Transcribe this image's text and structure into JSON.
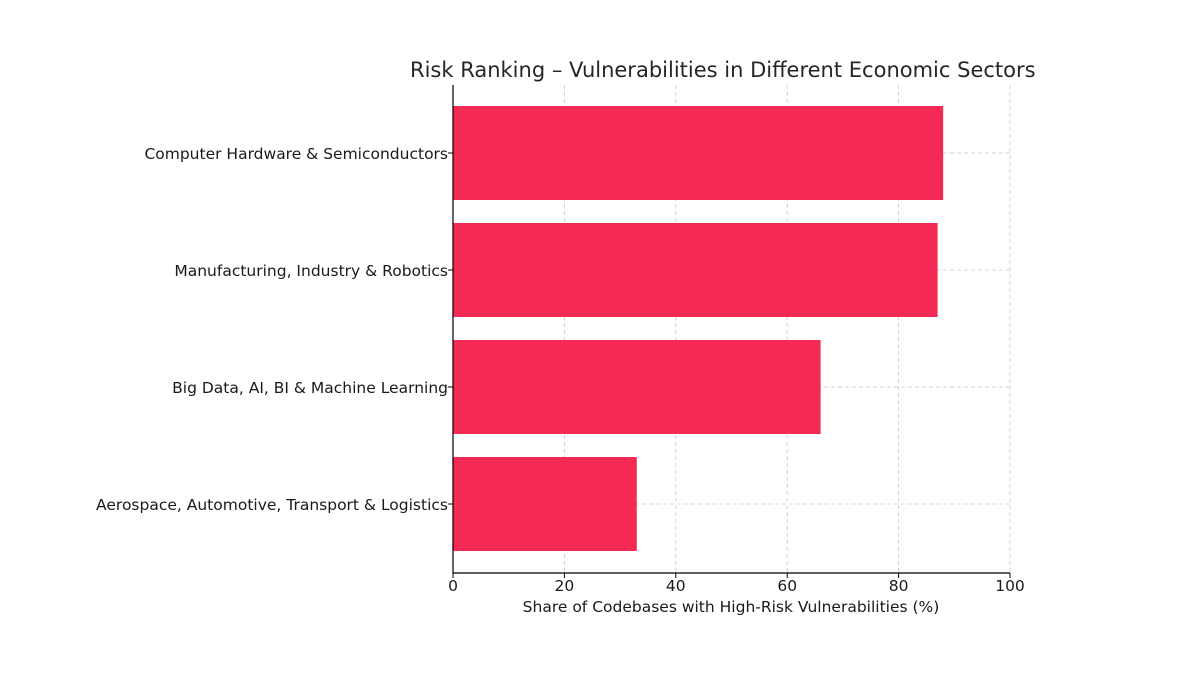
{
  "chart_data": {
    "type": "bar",
    "orientation": "horizontal",
    "title": "Risk Ranking – Vulnerabilities in Different Economic Sectors",
    "xlabel": "Share of Codebases with High-Risk Vulnerabilities (%)",
    "ylabel": "",
    "categories": [
      "Computer Hardware & Semiconductors",
      "Manufacturing, Industry & Robotics",
      "Big Data, AI, BI & Machine Learning",
      "Aerospace, Automotive, Transport & Logistics"
    ],
    "values": [
      88,
      87,
      66,
      33
    ],
    "xlim": [
      0,
      100
    ],
    "xticks": [
      0,
      20,
      40,
      60,
      80,
      100
    ],
    "grid": true,
    "bar_color": "#f42a55"
  }
}
